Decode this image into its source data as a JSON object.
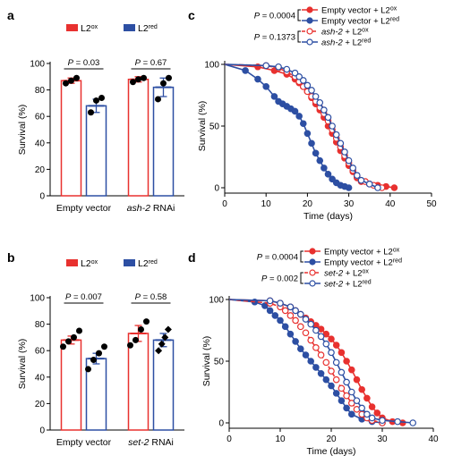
{
  "colors": {
    "ox": "#e8312f",
    "red": "#2d4fa3",
    "axis": "#000000"
  },
  "chart_data": [
    {
      "panel": "a",
      "type": "bar",
      "legend": [
        "L2ox",
        "L2red"
      ],
      "legend_placement": "top",
      "ylabel": "Survival (%)",
      "ylim": [
        0,
        100
      ],
      "yticks": [
        0,
        20,
        40,
        60,
        80,
        100
      ],
      "groups": [
        "Empty vector",
        "ash-2 RNAi"
      ],
      "series": [
        {
          "name": "L2ox",
          "values": [
            87,
            88
          ],
          "errors": [
            2,
            2
          ],
          "points": [
            [
              85,
              87,
              89
            ],
            [
              86,
              88,
              89
            ]
          ]
        },
        {
          "name": "L2red",
          "values": [
            68,
            82
          ],
          "errors": [
            5,
            7
          ],
          "points": [
            [
              63,
              72,
              74
            ],
            [
              73,
              85,
              89
            ]
          ]
        }
      ],
      "pvalues": [
        "P = 0.03",
        "P = 0.67"
      ]
    },
    {
      "panel": "b",
      "type": "bar",
      "legend": [
        "L2ox",
        "L2red"
      ],
      "legend_placement": "top",
      "ylabel": "Survival (%)",
      "ylim": [
        0,
        100
      ],
      "yticks": [
        0,
        20,
        40,
        60,
        80,
        100
      ],
      "groups": [
        "Empty vector",
        "set-2 RNAi"
      ],
      "series": [
        {
          "name": "L2ox",
          "values": [
            68,
            73
          ],
          "errors": [
            3,
            6
          ],
          "points": [
            [
              63,
              67,
              70,
              75
            ],
            [
              64,
              68,
              76,
              82
            ]
          ]
        },
        {
          "name": "L2red",
          "values": [
            54,
            68
          ],
          "errors": [
            4,
            5
          ],
          "points": [
            [
              46,
              53,
              58,
              63
            ],
            [
              60,
              65,
              70,
              76
            ]
          ]
        }
      ],
      "pvalues": [
        "P = 0.007",
        "P = 0.58"
      ]
    },
    {
      "panel": "c",
      "type": "line",
      "xlabel": "Time (days)",
      "ylabel": "Survival (%)",
      "xlim": [
        0,
        50
      ],
      "ylim": [
        0,
        100
      ],
      "xticks": [
        0,
        10,
        20,
        30,
        40,
        50
      ],
      "yticks": [
        0,
        50,
        100
      ],
      "series": [
        {
          "name": "Empty vector + L2ox",
          "color": "ox",
          "style": "solid",
          "marker": "filled",
          "x": [
            0,
            8,
            12,
            15,
            17,
            18,
            19,
            20,
            21,
            22,
            23,
            24,
            25,
            26,
            27,
            28,
            29,
            30,
            31,
            32,
            33,
            35,
            37,
            39,
            41
          ],
          "y": [
            100,
            98,
            95,
            92,
            88,
            85,
            82,
            78,
            73,
            68,
            63,
            57,
            50,
            44,
            37,
            30,
            24,
            18,
            13,
            8,
            5,
            3,
            2,
            1,
            0
          ]
        },
        {
          "name": "Empty vector + L2red",
          "color": "red",
          "style": "solid",
          "marker": "filled",
          "x": [
            0,
            5,
            8,
            10,
            12,
            13,
            14,
            15,
            16,
            17,
            18,
            19,
            20,
            21,
            22,
            23,
            24,
            25,
            26,
            27,
            28,
            29,
            30
          ],
          "y": [
            100,
            95,
            88,
            82,
            74,
            70,
            68,
            66,
            64,
            62,
            58,
            52,
            44,
            36,
            28,
            22,
            16,
            11,
            7,
            4,
            2,
            1,
            0
          ]
        },
        {
          "name": "ash-2 + L2ox",
          "color": "ox",
          "style": "dashed",
          "marker": "open",
          "x": [
            0,
            10,
            13,
            15,
            17,
            18,
            19,
            20,
            21,
            22,
            23,
            24,
            25,
            26,
            27,
            28,
            29,
            30,
            31,
            32,
            34,
            36,
            38
          ],
          "y": [
            100,
            99,
            97,
            94,
            90,
            86,
            82,
            78,
            74,
            70,
            65,
            60,
            54,
            47,
            40,
            33,
            26,
            20,
            14,
            9,
            5,
            2,
            0
          ]
        },
        {
          "name": "ash-2 + L2red",
          "color": "red",
          "style": "solid",
          "marker": "open",
          "x": [
            0,
            10,
            13,
            15,
            17,
            18,
            19,
            20,
            21,
            22,
            23,
            24,
            25,
            26,
            27,
            28,
            29,
            30,
            31,
            32,
            33,
            35,
            37
          ],
          "y": [
            100,
            99,
            98,
            96,
            93,
            90,
            87,
            83,
            79,
            74,
            69,
            63,
            57,
            50,
            43,
            36,
            29,
            22,
            16,
            10,
            6,
            3,
            0
          ]
        }
      ],
      "pvalues": [
        "P = 0.0004",
        "P = 0.1373"
      ]
    },
    {
      "panel": "d",
      "type": "line",
      "xlabel": "Time (days)",
      "ylabel": "Survival (%)",
      "xlim": [
        0,
        40
      ],
      "ylim": [
        0,
        100
      ],
      "xticks": [
        0,
        10,
        20,
        30,
        40
      ],
      "yticks": [
        0,
        50,
        100
      ],
      "series": [
        {
          "name": "Empty vector + L2ox",
          "color": "ox",
          "style": "solid",
          "marker": "filled",
          "x": [
            0,
            8,
            10,
            12,
            13,
            14,
            15,
            16,
            17,
            18,
            19,
            20,
            21,
            22,
            23,
            24,
            25,
            26,
            27,
            28,
            29,
            30,
            32,
            34
          ],
          "y": [
            100,
            99,
            97,
            94,
            91,
            88,
            85,
            82,
            79,
            76,
            72,
            68,
            63,
            57,
            50,
            43,
            35,
            27,
            20,
            13,
            8,
            4,
            1,
            0
          ]
        },
        {
          "name": "Empty vector + L2red",
          "color": "red",
          "style": "solid",
          "marker": "filled",
          "x": [
            0,
            5,
            7,
            8,
            9,
            10,
            11,
            12,
            13,
            14,
            15,
            16,
            17,
            18,
            19,
            20,
            21,
            22,
            23,
            24,
            26,
            28,
            30
          ],
          "y": [
            100,
            98,
            95,
            91,
            87,
            83,
            78,
            72,
            66,
            60,
            55,
            50,
            45,
            40,
            35,
            30,
            24,
            18,
            12,
            7,
            3,
            1,
            0
          ]
        },
        {
          "name": "set-2 + L2ox",
          "color": "ox",
          "style": "dashed",
          "marker": "open",
          "x": [
            0,
            8,
            10,
            11,
            12,
            13,
            14,
            15,
            16,
            17,
            18,
            19,
            20,
            21,
            22,
            23,
            24,
            25,
            26,
            27,
            28,
            30
          ],
          "y": [
            100,
            97,
            94,
            91,
            87,
            83,
            78,
            73,
            67,
            61,
            55,
            49,
            42,
            35,
            28,
            22,
            16,
            11,
            7,
            4,
            2,
            0
          ]
        },
        {
          "name": "set-2 + L2red",
          "color": "red",
          "style": "solid",
          "marker": "open",
          "x": [
            0,
            8,
            10,
            12,
            13,
            14,
            15,
            16,
            17,
            18,
            19,
            20,
            21,
            22,
            23,
            24,
            25,
            26,
            27,
            28,
            30,
            33,
            36
          ],
          "y": [
            100,
            99,
            97,
            94,
            91,
            88,
            84,
            80,
            75,
            70,
            64,
            57,
            49,
            41,
            33,
            25,
            18,
            12,
            7,
            4,
            2,
            1,
            0
          ]
        }
      ],
      "pvalues": [
        "P = 0.0004",
        "P = 0.002"
      ]
    }
  ]
}
